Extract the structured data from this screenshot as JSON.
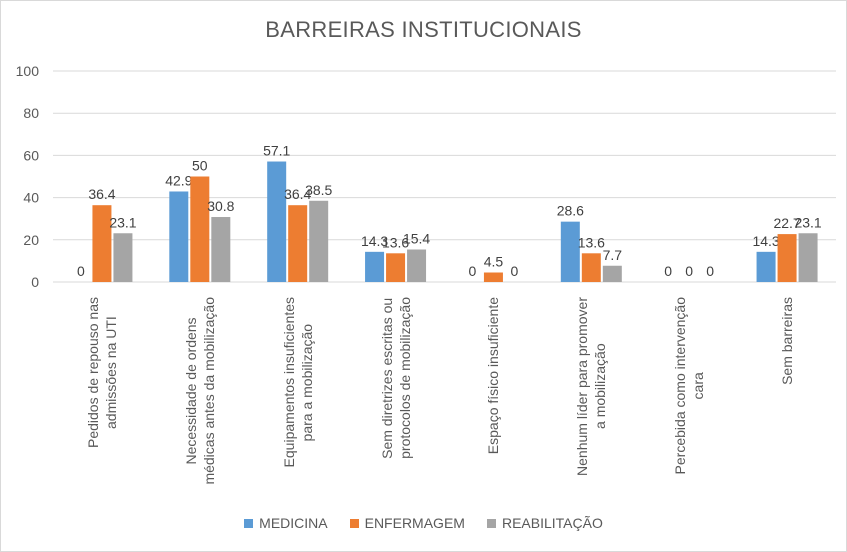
{
  "chart_data": {
    "type": "bar",
    "title": "BARREIRAS INSTITUCIONAIS",
    "xlabel": "",
    "ylabel": "",
    "ylim": [
      0,
      100
    ],
    "yticks": [
      0,
      20,
      40,
      60,
      80,
      100
    ],
    "grid": true,
    "legend_position": "bottom",
    "categories": [
      [
        "Pedidos de repouso nas",
        "admissões na UTI"
      ],
      [
        "Necessidade de ordens",
        "médicas antes da mobilização"
      ],
      [
        "Equipamentos insuficientes",
        "para a mobilização"
      ],
      [
        "Sem diretrizes escritas ou",
        "protocolos de mobilização"
      ],
      [
        "Espaço físico insuficiente"
      ],
      [
        "Nenhum líder para promover",
        "a mobilização"
      ],
      [
        "Percebida como intervenção",
        "cara"
      ],
      [
        "Sem barreiras"
      ]
    ],
    "series": [
      {
        "name": "MEDICINA",
        "color": "#5B9BD5",
        "values": [
          0,
          42.9,
          57.1,
          14.3,
          0,
          28.6,
          0,
          14.3
        ]
      },
      {
        "name": "ENFERMAGEM",
        "color": "#ED7D31",
        "values": [
          36.4,
          50,
          36.4,
          13.6,
          4.5,
          13.6,
          0,
          22.7
        ]
      },
      {
        "name": "REABILITAÇÃO",
        "color": "#A5A5A5",
        "values": [
          23.1,
          30.8,
          38.5,
          15.4,
          0,
          7.7,
          0,
          23.1
        ]
      }
    ]
  }
}
